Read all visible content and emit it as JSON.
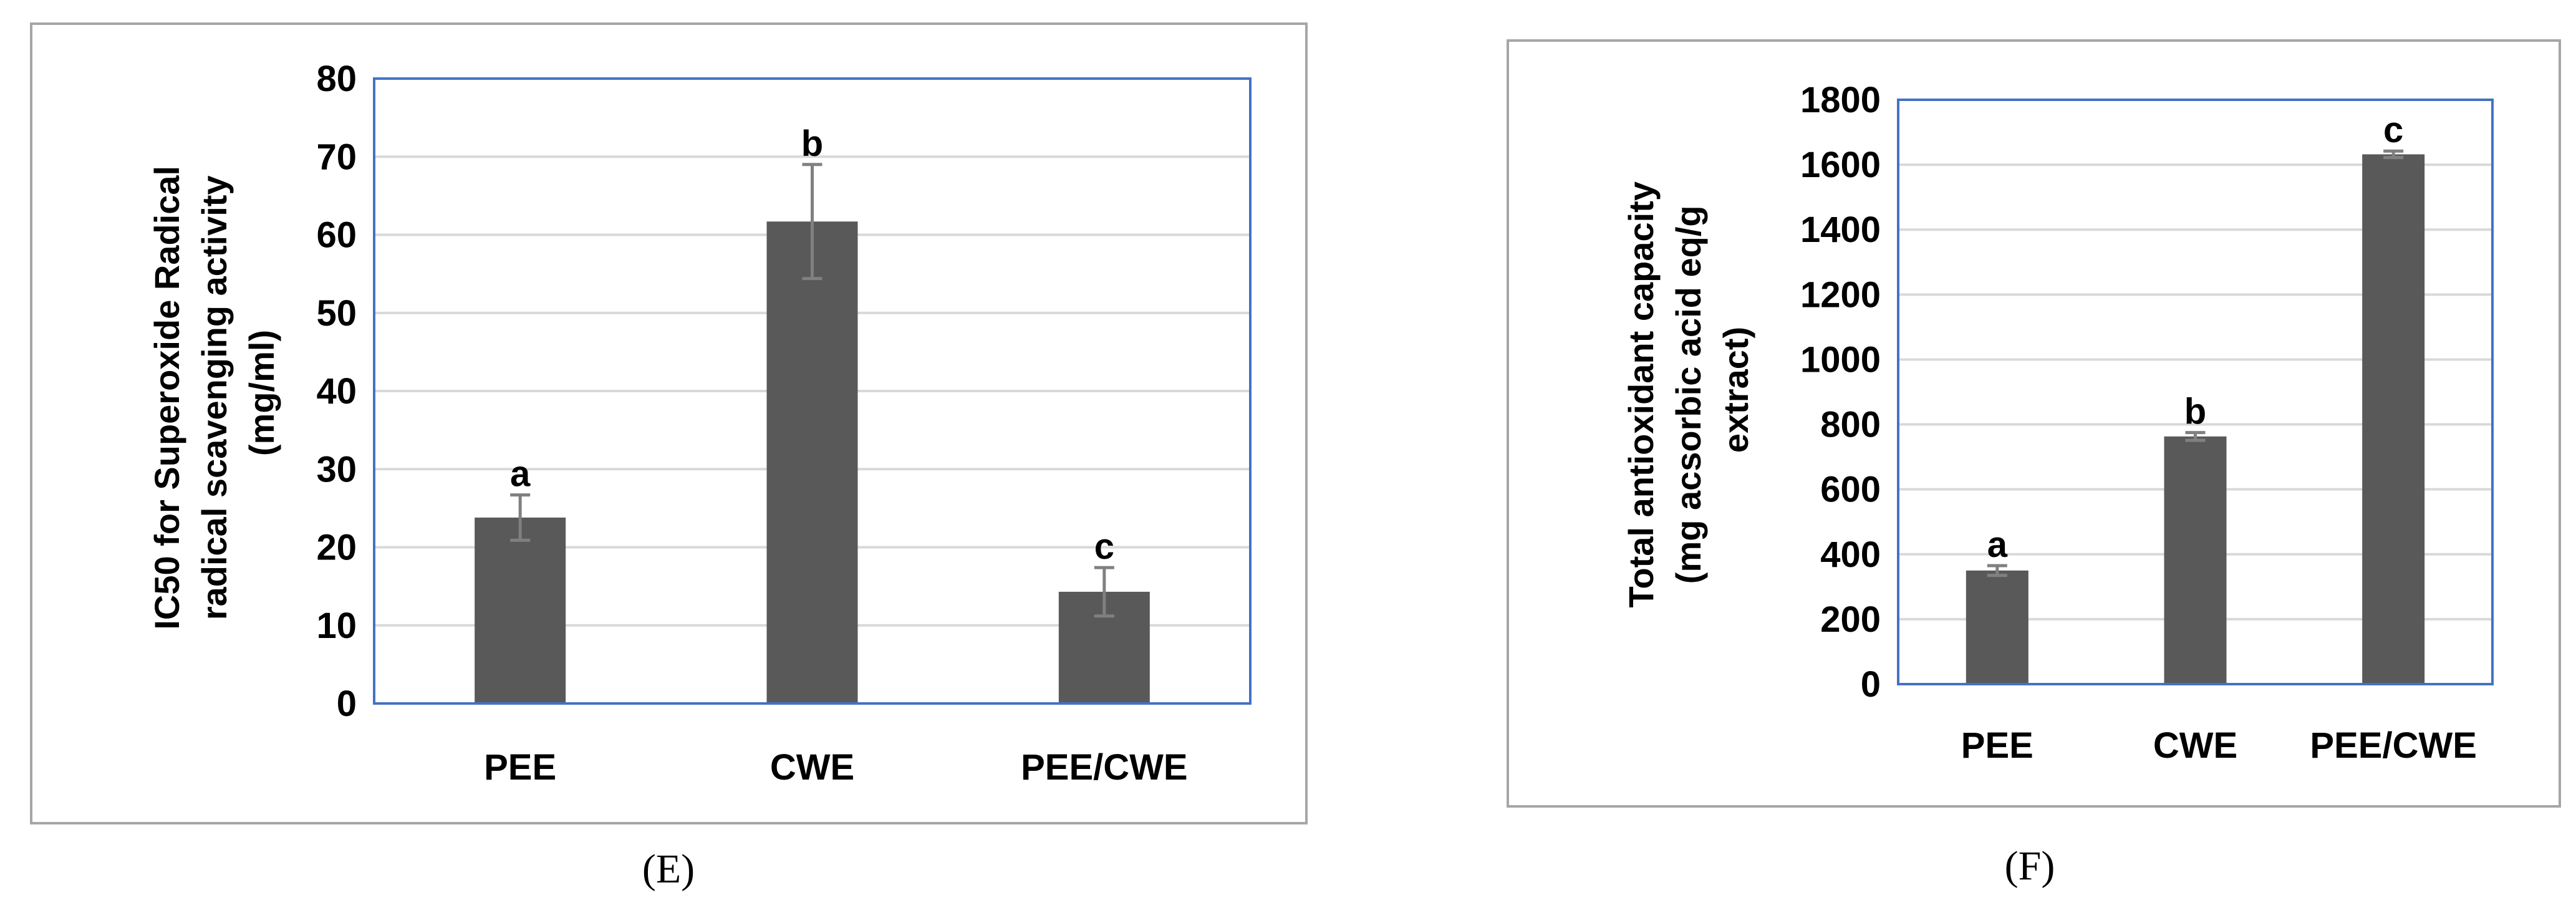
{
  "colors": {
    "bar": "#595959",
    "error_bar": "#808080",
    "plot_border": "#4472C4",
    "frame": "#A6A6A6",
    "grid": "#D9D9D9"
  },
  "chart_data": [
    {
      "type": "bar",
      "panel_label": "(E)",
      "ylabel_lines": [
        "IC50 for Superoxide Radical",
        "radical scavenging activity",
        "(mg/ml)"
      ],
      "categories": [
        "PEE",
        "CWE",
        "PEE/CWE"
      ],
      "values": [
        23.8,
        61.7,
        14.3
      ],
      "errors": [
        2.9,
        7.3,
        3.1
      ],
      "significance_labels": [
        "a",
        "b",
        "c"
      ],
      "ylim": [
        0,
        80
      ],
      "yticks": [
        0,
        10,
        20,
        30,
        40,
        50,
        60,
        70,
        80
      ],
      "grid": true
    },
    {
      "type": "bar",
      "panel_label": "(F)",
      "ylabel_lines": [
        "Total antioxidant capacity",
        "(mg acsorbic acid eq/g",
        "extract)"
      ],
      "categories": [
        "PEE",
        "CWE",
        "PEE/CWE"
      ],
      "values": [
        350,
        763,
        1632
      ],
      "errors": [
        15,
        12,
        10
      ],
      "significance_labels": [
        "a",
        "b",
        "c"
      ],
      "ylim": [
        0,
        1800
      ],
      "yticks": [
        0,
        200,
        400,
        600,
        800,
        1000,
        1200,
        1400,
        1600,
        1800
      ],
      "grid": true
    }
  ]
}
